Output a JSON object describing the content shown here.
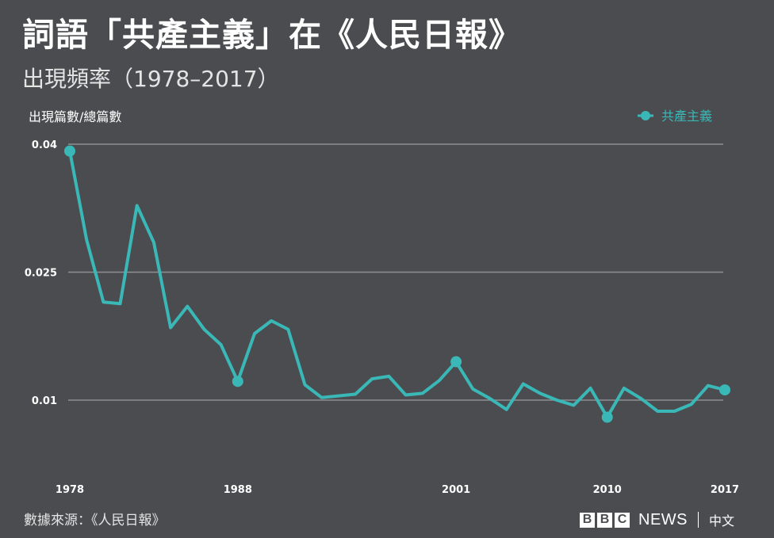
{
  "title": "詞語「共產主義」在《人民日報》",
  "subtitle": "出現頻率（1978–2017）",
  "source": "數據來源：《人民日報》",
  "logo": {
    "letters": [
      "B",
      "B",
      "C"
    ],
    "news": "NEWS",
    "lang": "中文"
  },
  "colors": {
    "background": "#4b4c4f",
    "series": "#3ab8b8",
    "grid": "#8e8f92",
    "text": "#ffffff"
  },
  "chart_data": {
    "type": "line",
    "ylabel": "出現篇數/總篇數",
    "xlabel": "",
    "legend": {
      "placement": "top-right"
    },
    "xlim": [
      1978,
      2017
    ],
    "ylim": [
      0.0,
      0.04
    ],
    "grid": true,
    "yticks": [
      {
        "value": 0.04,
        "label": "0.04"
      },
      {
        "value": 0.025,
        "label": "0.025"
      },
      {
        "value": 0.01,
        "label": "0.01"
      }
    ],
    "xticks": [
      {
        "value": 1978,
        "label": "1978"
      },
      {
        "value": 1988,
        "label": "1988"
      },
      {
        "value": 2001,
        "label": "2001"
      },
      {
        "value": 2010,
        "label": "2010"
      },
      {
        "value": 2017,
        "label": "2017"
      }
    ],
    "series": [
      {
        "name": "共產主義",
        "x": [
          1978,
          1979,
          1980,
          1981,
          1982,
          1983,
          1984,
          1985,
          1986,
          1987,
          1988,
          1989,
          1990,
          1991,
          1992,
          1993,
          1994,
          1995,
          1996,
          1997,
          1998,
          1999,
          2000,
          2001,
          2002,
          2003,
          2004,
          2005,
          2006,
          2007,
          2008,
          2009,
          2010,
          2011,
          2012,
          2013,
          2014,
          2015,
          2016,
          2017
        ],
        "y": [
          0.0392,
          0.0288,
          0.0215,
          0.0213,
          0.0328,
          0.0285,
          0.0185,
          0.021,
          0.0183,
          0.0165,
          0.0122,
          0.0178,
          0.0193,
          0.0183,
          0.0118,
          0.0103,
          0.0105,
          0.0107,
          0.0125,
          0.0128,
          0.0106,
          0.0108,
          0.0123,
          0.0145,
          0.0113,
          0.0102,
          0.0089,
          0.0119,
          0.0108,
          0.01,
          0.0094,
          0.0114,
          0.008,
          0.0114,
          0.0102,
          0.0087,
          0.0087,
          0.0095,
          0.0117,
          0.0112
        ],
        "markers": [
          1978,
          1988,
          2001,
          2010,
          2017
        ]
      }
    ]
  }
}
